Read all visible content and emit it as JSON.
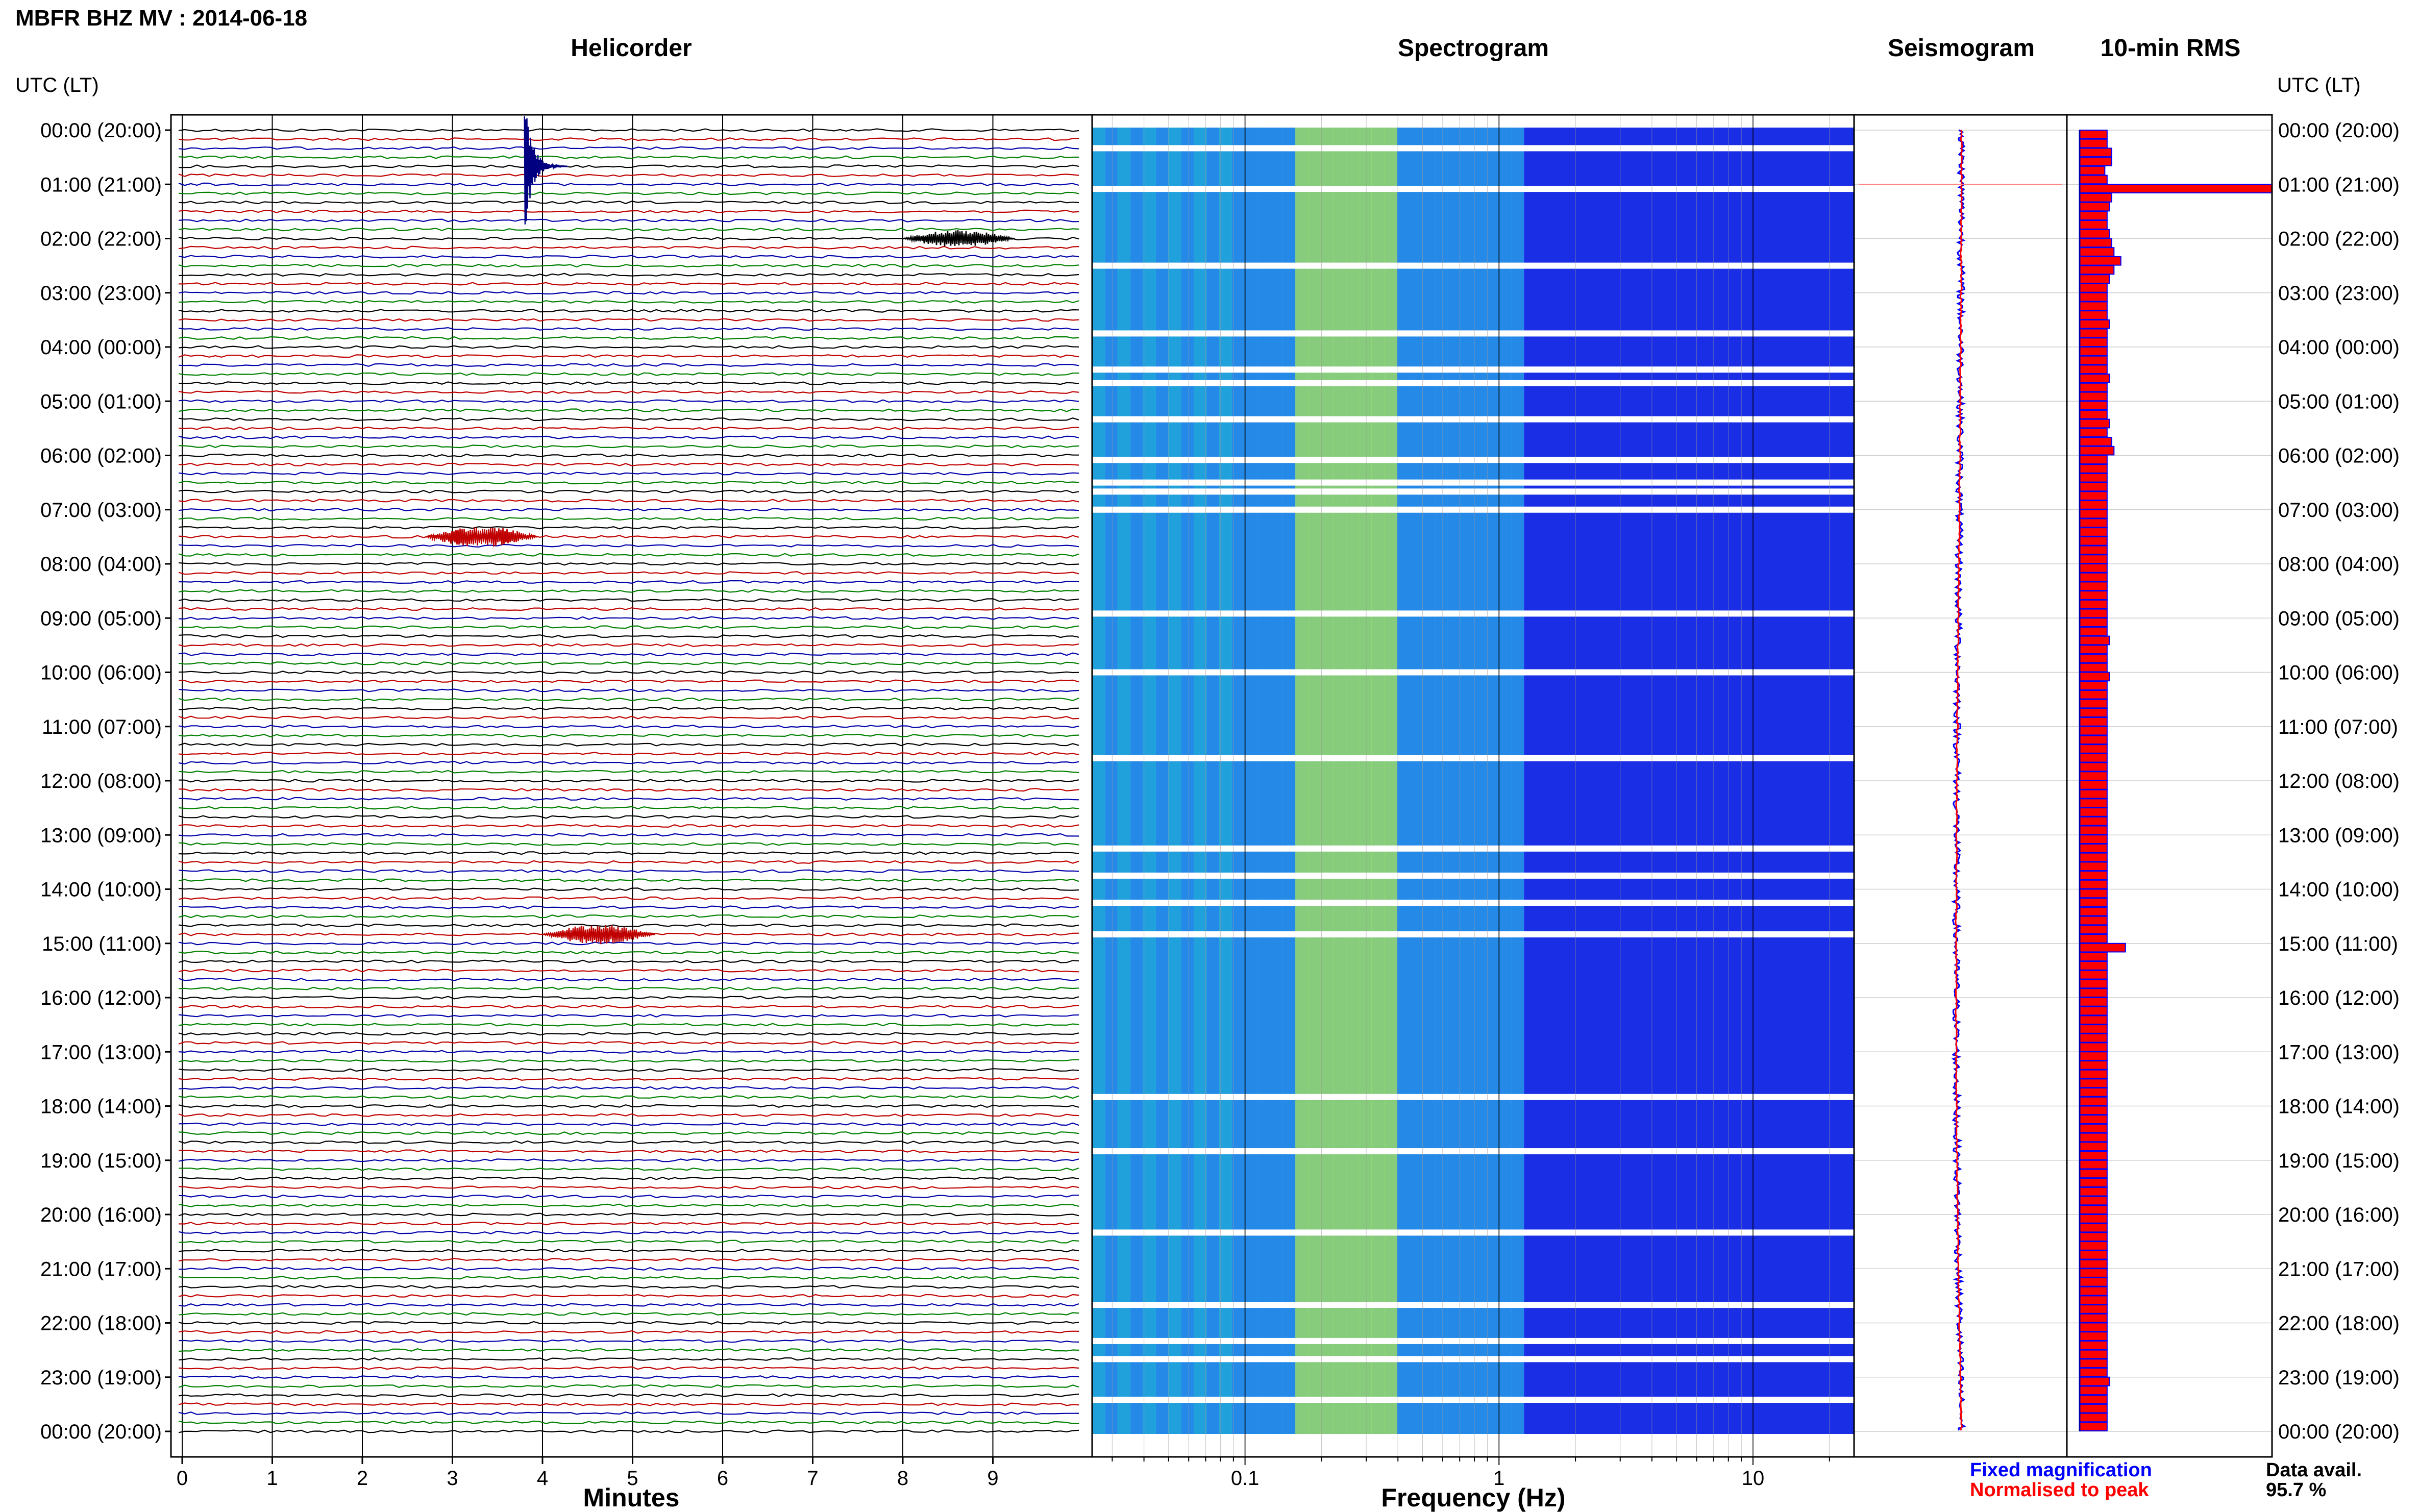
{
  "page": {
    "title": "MBFR BHZ MV : 2014-06-18"
  },
  "labels": {
    "utc_lt_left": "UTC (LT)",
    "utc_lt_right": "UTC (LT)",
    "fixed_magnification": "Fixed magnification",
    "normalised_to_peak": "Normalised to peak",
    "data_avail_label": "Data avail.",
    "data_avail_value": "95.7 %"
  },
  "colors": {
    "trace_cycle": [
      "#000000",
      "#c00000",
      "#0000aa",
      "#008000"
    ],
    "fixed": "#0000ff",
    "normalised": "#ff0000",
    "spec_low": "#1a2ee6",
    "spec_mid": "#2aa8e8",
    "spec_high": "#9be86a",
    "grid": "#000000"
  },
  "chart_data": [
    {
      "type": "line",
      "name": "helicorder",
      "title": "Helicorder",
      "xlabel": "Minutes",
      "x_ticks": [
        "0",
        "1",
        "2",
        "3",
        "4",
        "5",
        "6",
        "7",
        "8",
        "9"
      ],
      "xlim": [
        0,
        10
      ],
      "hour_labels": [
        "00:00 (20:00)",
        "01:00 (21:00)",
        "02:00 (22:00)",
        "03:00 (23:00)",
        "04:00 (00:00)",
        "05:00 (01:00)",
        "06:00 (02:00)",
        "07:00 (03:00)",
        "08:00 (04:00)",
        "09:00 (05:00)",
        "10:00 (06:00)",
        "11:00 (07:00)",
        "12:00 (08:00)",
        "13:00 (09:00)",
        "14:00 (10:00)",
        "15:00 (11:00)",
        "16:00 (12:00)",
        "17:00 (13:00)",
        "18:00 (14:00)",
        "19:00 (15:00)",
        "20:00 (16:00)",
        "21:00 (17:00)",
        "22:00 (18:00)",
        "23:00 (19:00)",
        "00:00 (20:00)"
      ],
      "lines_per_hour": 6,
      "events": [
        {
          "time": "00:40",
          "minute": 3.8,
          "amplitude": 10
        },
        {
          "time": "07:30",
          "minute": 2.7,
          "amplitude": 1.5
        },
        {
          "time": "14:50",
          "minute": 4.0,
          "amplitude": 1.4
        },
        {
          "time": "02:00",
          "minute": 8.0,
          "amplitude": 1.2
        }
      ]
    },
    {
      "type": "heatmap",
      "name": "spectrogram",
      "title": "Spectrogram",
      "xlabel": "Frequency (Hz)",
      "x_scale": "log",
      "xlim": [
        0.025,
        25
      ],
      "x_ticks": [
        "0.1",
        "1",
        "10"
      ],
      "peak_band_hz": [
        0.15,
        0.4
      ],
      "gaps_utc": [
        "00:20",
        "01:05",
        "02:30",
        "03:45",
        "04:25",
        "04:40",
        "05:20",
        "06:05",
        "06:30",
        "06:40",
        "07:00",
        "08:55",
        "10:00",
        "11:35",
        "13:15",
        "13:45",
        "14:15",
        "14:50",
        "17:50",
        "18:50",
        "20:20",
        "21:40",
        "22:20",
        "22:40",
        "23:25"
      ]
    },
    {
      "type": "line",
      "name": "seismogram",
      "title": "Seismogram",
      "series": [
        {
          "name": "Fixed magnification",
          "color": "#0000ff"
        },
        {
          "name": "Normalised to peak",
          "color": "#ff0000"
        }
      ],
      "peak_time": "01:00"
    },
    {
      "type": "bar",
      "name": "rms",
      "title": "10-min RMS",
      "orientation": "horizontal",
      "bins_per_hour": 6,
      "values": [
        0.6,
        0.6,
        0.7,
        0.7,
        0.55,
        0.6,
        4.2,
        0.7,
        0.65,
        0.6,
        0.6,
        0.65,
        0.7,
        0.75,
        0.9,
        0.75,
        0.65,
        0.6,
        0.6,
        0.6,
        0.6,
        0.65,
        0.6,
        0.6,
        0.6,
        0.6,
        0.6,
        0.65,
        0.6,
        0.6,
        0.6,
        0.6,
        0.65,
        0.6,
        0.7,
        0.75,
        0.6,
        0.6,
        0.6,
        0.6,
        0.6,
        0.6,
        0.6,
        0.6,
        0.6,
        0.6,
        0.6,
        0.6,
        0.6,
        0.6,
        0.6,
        0.6,
        0.6,
        0.6,
        0.6,
        0.6,
        0.65,
        0.6,
        0.6,
        0.6,
        0.65,
        0.6,
        0.6,
        0.6,
        0.6,
        0.6,
        0.6,
        0.6,
        0.6,
        0.6,
        0.6,
        0.6,
        0.6,
        0.6,
        0.6,
        0.6,
        0.6,
        0.6,
        0.6,
        0.6,
        0.6,
        0.6,
        0.6,
        0.6,
        0.6,
        0.6,
        0.6,
        0.6,
        0.6,
        0.6,
        1.0,
        0.6,
        0.6,
        0.6,
        0.6,
        0.6,
        0.6,
        0.6,
        0.6,
        0.6,
        0.6,
        0.6,
        0.6,
        0.6,
        0.6,
        0.6,
        0.6,
        0.6,
        0.6,
        0.6,
        0.6,
        0.6,
        0.6,
        0.6,
        0.6,
        0.6,
        0.6,
        0.6,
        0.6,
        0.6,
        0.6,
        0.6,
        0.6,
        0.6,
        0.6,
        0.6,
        0.6,
        0.6,
        0.6,
        0.6,
        0.6,
        0.6,
        0.6,
        0.6,
        0.6,
        0.6,
        0.6,
        0.6,
        0.65,
        0.6,
        0.6,
        0.6,
        0.6,
        0.6
      ]
    }
  ]
}
